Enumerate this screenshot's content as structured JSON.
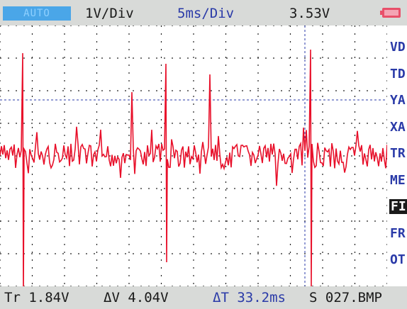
{
  "header": {
    "mode": "AUTO",
    "volts_div": "1V/Div",
    "time_div": "5ms/Div",
    "reading": "3.53V"
  },
  "menu": {
    "items": [
      {
        "label": "VD",
        "selected": false
      },
      {
        "label": "TD",
        "selected": false
      },
      {
        "label": "YA",
        "selected": false
      },
      {
        "label": "XA",
        "selected": false
      },
      {
        "label": "TR",
        "selected": false
      },
      {
        "label": "ME",
        "selected": false
      },
      {
        "label": "FI",
        "selected": true
      },
      {
        "label": "FR",
        "selected": false
      },
      {
        "label": "OT",
        "selected": false
      }
    ]
  },
  "footer": {
    "trigger": "Tr 1.84V",
    "delta_v": "ΔV 4.04V",
    "delta_t": "ΔT 33.2ms",
    "file": "S 027.BMP"
  },
  "colors": {
    "trace": "#e8102a",
    "grid": "#222222",
    "accent": "#2a3aa8",
    "battery": "#e8506a"
  }
}
